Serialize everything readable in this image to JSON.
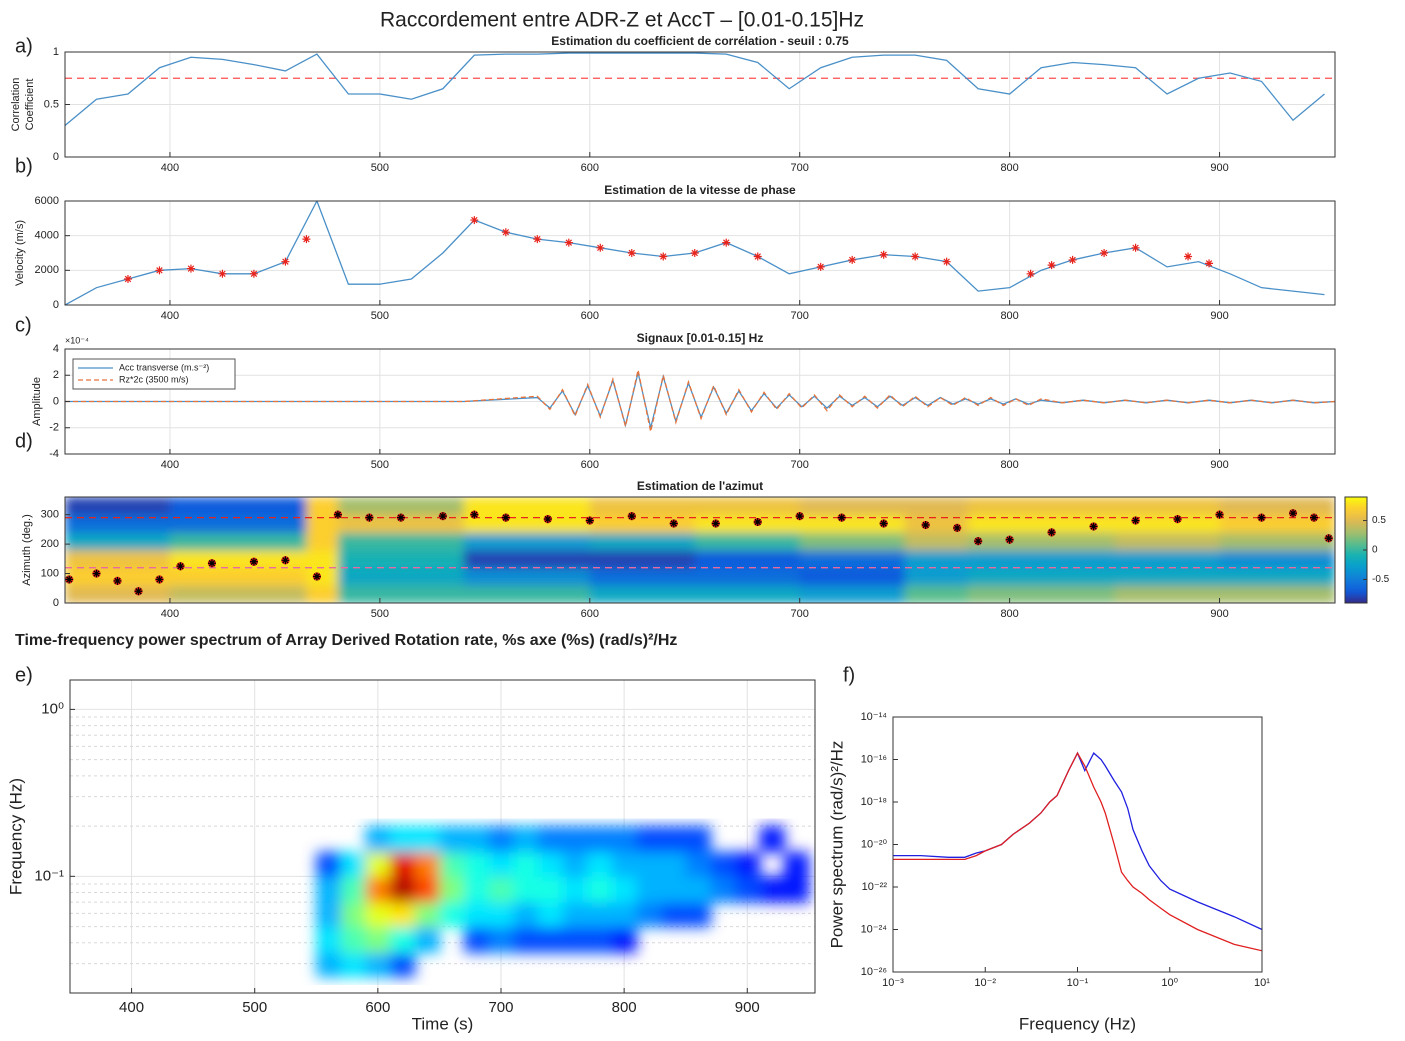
{
  "title": "Raccordement entre ADR-Z et AccT – [0.01-0.15]Hz",
  "chart_data": [
    {
      "type": "line",
      "panel": "a)",
      "title": "Estimation du coefficient de corrélation - seuil : 0.75",
      "ylabel": [
        "Correlation",
        "Coefficient"
      ],
      "x": [
        350,
        365,
        380,
        395,
        410,
        425,
        440,
        455,
        470,
        485,
        500,
        515,
        530,
        545,
        560,
        575,
        590,
        605,
        620,
        635,
        650,
        665,
        680,
        695,
        710,
        725,
        740,
        755,
        770,
        785,
        800,
        815,
        830,
        845,
        860,
        875,
        890,
        905,
        920,
        935,
        950
      ],
      "series": [
        {
          "color": "#4a90c8",
          "values": [
            0.3,
            0.55,
            0.6,
            0.85,
            0.95,
            0.93,
            0.88,
            0.82,
            0.98,
            0.6,
            0.6,
            0.55,
            0.65,
            0.97,
            0.98,
            0.98,
            0.99,
            0.99,
            0.99,
            0.99,
            0.99,
            0.98,
            0.9,
            0.65,
            0.85,
            0.95,
            0.97,
            0.97,
            0.92,
            0.65,
            0.6,
            0.85,
            0.9,
            0.88,
            0.85,
            0.6,
            0.75,
            0.8,
            0.72,
            0.35,
            0.6
          ]
        }
      ],
      "hlines": [
        {
          "value": 0.75,
          "color": "#ff4d4d"
        }
      ],
      "xlim": [
        350,
        955
      ],
      "xticks": [
        400,
        500,
        600,
        700,
        800,
        900
      ],
      "ylim": [
        0,
        1
      ],
      "yticks": [
        0,
        0.5,
        1
      ],
      "grid": true
    },
    {
      "type": "line",
      "panel": "b)",
      "title": "Estimation de la vitesse de phase",
      "ylabel": "Velocity (m/s)",
      "x": [
        350,
        365,
        380,
        395,
        410,
        425,
        440,
        455,
        470,
        485,
        500,
        515,
        530,
        545,
        560,
        575,
        590,
        605,
        620,
        635,
        650,
        665,
        680,
        695,
        710,
        725,
        740,
        755,
        770,
        785,
        800,
        815,
        830,
        845,
        860,
        875,
        890,
        905,
        920,
        935,
        950
      ],
      "series": [
        {
          "color": "#4a90c8",
          "values": [
            0,
            1000,
            1500,
            2000,
            2100,
            1800,
            1800,
            2500,
            6000,
            1200,
            1200,
            1500,
            3000,
            4900,
            4200,
            3800,
            3600,
            3300,
            3000,
            2800,
            3000,
            3600,
            2800,
            1800,
            2200,
            2600,
            2900,
            2800,
            2500,
            800,
            1000,
            2000,
            2600,
            3000,
            3300,
            2200,
            2500,
            1800,
            1000,
            800,
            600
          ]
        },
        {
          "color": "#e8231b",
          "mode": "markers",
          "x": [
            380,
            395,
            410,
            425,
            440,
            455,
            465,
            545,
            560,
            575,
            590,
            605,
            620,
            635,
            650,
            665,
            680,
            710,
            725,
            740,
            755,
            770,
            810,
            820,
            830,
            845,
            860,
            885,
            895
          ],
          "values": [
            1500,
            2000,
            2100,
            1800,
            1800,
            2500,
            3800,
            4900,
            4200,
            3800,
            3600,
            3300,
            3000,
            2800,
            3000,
            3600,
            2800,
            2200,
            2600,
            2900,
            2800,
            2500,
            1800,
            2300,
            2600,
            3000,
            3300,
            2800,
            2400
          ]
        }
      ],
      "xlim": [
        350,
        955
      ],
      "xticks": [
        400,
        500,
        600,
        700,
        800,
        900
      ],
      "ylim": [
        0,
        6000
      ],
      "yticks": [
        0,
        2000,
        4000,
        6000
      ],
      "grid": true
    },
    {
      "type": "line",
      "panel": "c)",
      "title": "Signaux [0.01-0.15] Hz",
      "ylabel": "Amplitude",
      "exponent_label": "×10⁻⁴",
      "x": [
        350,
        540,
        575,
        581,
        587,
        593,
        599,
        605,
        611,
        617,
        623,
        629,
        635,
        641,
        647,
        653,
        659,
        665,
        671,
        677,
        683,
        689,
        695,
        701,
        707,
        713,
        719,
        725,
        731,
        737,
        743,
        749,
        755,
        761,
        767,
        773,
        779,
        785,
        791,
        797,
        803,
        809,
        815,
        825,
        835,
        845,
        855,
        865,
        875,
        885,
        895,
        905,
        915,
        925,
        935,
        945,
        955
      ],
      "series": [
        {
          "name": "Acc transverse (m.s⁻²)",
          "color": "#4a90c8",
          "values": [
            0,
            0,
            3e-05,
            -5e-05,
            8e-05,
            -0.0001,
            0.00012,
            -0.00011,
            0.00016,
            -0.00018,
            0.00022,
            -0.0002,
            0.00019,
            -0.00015,
            0.00014,
            -0.00012,
            0.00011,
            -9e-05,
            8e-05,
            -7e-05,
            6e-05,
            -5e-05,
            5e-05,
            -4e-05,
            4e-05,
            -5e-05,
            4e-05,
            -3e-05,
            3e-05,
            -4e-05,
            4e-05,
            -3e-05,
            3e-05,
            -3e-05,
            3e-05,
            -2e-05,
            2e-05,
            -2e-05,
            2e-05,
            -2e-05,
            2e-05,
            -2e-05,
            1e-05,
            -1e-05,
            1e-05,
            -1e-05,
            1e-05,
            -1e-05,
            1e-05,
            -1e-05,
            1e-05,
            -1e-05,
            1e-05,
            -1e-05,
            1e-05,
            -1e-05,
            0
          ]
        },
        {
          "name": "Rz*2c (3500 m/s)",
          "color": "#e8743b",
          "dash": true,
          "values": [
            0,
            0,
            4e-05,
            -6e-05,
            9e-05,
            -0.00011,
            0.00013,
            -0.00012,
            0.00017,
            -0.00019,
            0.00024,
            -0.00023,
            0.0002,
            -0.00016,
            0.00015,
            -0.00013,
            0.00012,
            -0.0001,
            9e-05,
            -8e-05,
            7e-05,
            -6e-05,
            6e-05,
            -5e-05,
            5e-05,
            -7e-05,
            5e-05,
            -4e-05,
            4e-05,
            -5e-05,
            5e-05,
            -4e-05,
            4e-05,
            -4e-05,
            3e-05,
            -3e-05,
            3e-05,
            -3e-05,
            3e-05,
            -3e-05,
            2e-05,
            -3e-05,
            2e-05,
            -1e-05,
            1e-05,
            -1e-05,
            1e-05,
            -1e-05,
            1e-05,
            -1e-05,
            1e-05,
            -1e-05,
            1e-05,
            -1e-05,
            1e-05,
            -1e-05,
            0
          ]
        }
      ],
      "legend": "upper left",
      "xlim": [
        350,
        955
      ],
      "xticks": [
        400,
        500,
        600,
        700,
        800,
        900
      ],
      "ylim": [
        -0.0004,
        0.0004
      ],
      "yticks": [
        {
          "value": -0.0004,
          "label": "-4"
        },
        {
          "value": -0.0002,
          "label": "-2"
        },
        0,
        {
          "value": 0.0002,
          "label": "2"
        },
        {
          "value": 0.0004,
          "label": "4"
        }
      ],
      "grid": true
    },
    {
      "type": "heatmap",
      "panel": "d)",
      "title": "Estimation de l'azimut",
      "ylabel": "Azimuth (deg.)",
      "colormap": "parula",
      "clim": [
        -0.9,
        0.9
      ],
      "colorbar_ticks": [
        -0.5,
        0,
        0.5
      ],
      "x_edges": [
        350,
        400,
        465,
        480,
        540,
        600,
        650,
        700,
        750,
        780,
        850,
        900,
        955
      ],
      "y_edges": [
        0,
        60,
        120,
        180,
        240,
        300,
        360
      ],
      "values": [
        [
          0.5,
          0.4,
          0.7,
          0,
          0,
          -0.2,
          -0.2,
          -0.3,
          0.1,
          0.2,
          0.3,
          0.3
        ],
        [
          0.7,
          0.7,
          0.8,
          -0.2,
          -0.4,
          -0.6,
          -0.6,
          -0.7,
          -0.3,
          -0.2,
          -0.2,
          -0.2
        ],
        [
          0.6,
          0.8,
          0.8,
          -0.1,
          -0.8,
          -0.8,
          -0.7,
          -0.6,
          -0.3,
          -0.3,
          -0.3,
          -0.4
        ],
        [
          -0.2,
          0,
          0.7,
          0,
          -0.3,
          -0.2,
          0,
          0.2,
          0.4,
          0.3,
          0.4,
          0.3
        ],
        [
          -0.6,
          -0.6,
          0.7,
          0.6,
          0.8,
          0.7,
          0.8,
          0.8,
          0.6,
          0.8,
          0.8,
          0.7
        ],
        [
          -0.8,
          -0.7,
          0.7,
          0.3,
          0.8,
          0.6,
          0.6,
          0.5,
          0.5,
          0.6,
          0.6,
          0.5
        ]
      ],
      "series": [
        {
          "mode": "markers",
          "color": "#000000",
          "edge_color": "#e8231b",
          "x": [
            352,
            365,
            375,
            385,
            395,
            405,
            420,
            440,
            455,
            470,
            480,
            495,
            510,
            530,
            545,
            560,
            580,
            600,
            620,
            640,
            660,
            680,
            700,
            720,
            740,
            760,
            775,
            785,
            800,
            820,
            840,
            860,
            880,
            900,
            920,
            935,
            945,
            952
          ],
          "values": [
            80,
            100,
            75,
            40,
            80,
            125,
            135,
            140,
            145,
            90,
            300,
            290,
            290,
            295,
            300,
            290,
            285,
            280,
            295,
            270,
            270,
            275,
            295,
            290,
            270,
            265,
            255,
            210,
            215,
            240,
            260,
            280,
            285,
            300,
            290,
            305,
            290,
            220
          ]
        }
      ],
      "hlines": [
        {
          "value": 290,
          "color": "#e8231b"
        },
        {
          "value": 120,
          "color": "#e86aa0"
        }
      ],
      "xlim": [
        350,
        955
      ],
      "xticks": [
        400,
        500,
        600,
        700,
        800,
        900
      ],
      "ylim": [
        0,
        360
      ],
      "yticks": [
        0,
        100,
        200,
        300
      ],
      "grid": false
    },
    {
      "type": "heatmap",
      "panel": "e)",
      "title": "Time-frequency power spectrum of Array Derived Rotation rate, %s axe (%s) (rad/s)²/Hz",
      "xlabel": "Time (s)",
      "ylabel": "Frequency (Hz)",
      "yscale": "log",
      "colormap": "jet",
      "clim": [
        0,
        1
      ],
      "x_edges": [
        550,
        570,
        590,
        610,
        630,
        650,
        670,
        690,
        710,
        730,
        750,
        770,
        790,
        810,
        830,
        850,
        870,
        890,
        910,
        930,
        950
      ],
      "y_edges": [
        0.025,
        0.035,
        0.05,
        0.07,
        0.1,
        0.14,
        0.2
      ],
      "values": [
        [
          0.3,
          0.35,
          0.3,
          0.2,
          null,
          null,
          null,
          null,
          null,
          null,
          null,
          null,
          null,
          null,
          null,
          null,
          null,
          null,
          null,
          null
        ],
        [
          0.35,
          0.45,
          0.5,
          0.4,
          0.3,
          null,
          0.2,
          0.25,
          0.2,
          0.2,
          0.2,
          0.2,
          0.15,
          null,
          null,
          null,
          null,
          null,
          null,
          null
        ],
        [
          0.3,
          0.5,
          0.6,
          0.65,
          0.5,
          0.4,
          0.35,
          0.35,
          0.3,
          0.35,
          0.3,
          0.3,
          0.3,
          0.25,
          0.2,
          0.2,
          null,
          null,
          null,
          null
        ],
        [
          0.3,
          0.45,
          0.75,
          0.95,
          0.8,
          0.5,
          0.4,
          0.45,
          0.4,
          0.4,
          0.35,
          0.4,
          0.35,
          0.3,
          0.3,
          0.3,
          0.25,
          0.2,
          0.15,
          0.15
        ],
        [
          0.2,
          0.35,
          0.6,
          0.9,
          0.75,
          0.45,
          0.4,
          0.35,
          0.4,
          0.35,
          0.3,
          0.35,
          0.3,
          0.3,
          0.3,
          0.25,
          0.2,
          0.15,
          null,
          0.15
        ],
        [
          null,
          null,
          0.3,
          0.35,
          0.35,
          0.3,
          0.3,
          0.25,
          0.3,
          0.25,
          0.25,
          0.25,
          0.25,
          0.2,
          0.2,
          0.2,
          null,
          null,
          0.15,
          null
        ]
      ],
      "xlim": [
        350,
        955
      ],
      "xticks": [
        400,
        500,
        600,
        700,
        800,
        900
      ],
      "ylim": [
        0.02,
        1.5
      ],
      "yticks": [
        {
          "value": 0.1,
          "label": "10⁻¹"
        },
        {
          "value": 1,
          "label": "10⁰"
        }
      ],
      "yminor": [
        0.02,
        0.03,
        0.04,
        0.05,
        0.06,
        0.07,
        0.08,
        0.09,
        0.2,
        0.3,
        0.4,
        0.5,
        0.6,
        0.7,
        0.8,
        0.9
      ],
      "grid": true
    },
    {
      "type": "line",
      "panel": "f)",
      "xlabel": "Frequency (Hz)",
      "ylabel": "Power spectrum (rad/s)²/Hz",
      "xscale": "log",
      "yscale": "log",
      "x": [
        0.001,
        0.002,
        0.004,
        0.006,
        0.008,
        0.01,
        0.015,
        0.02,
        0.03,
        0.04,
        0.05,
        0.06,
        0.08,
        0.1,
        0.12,
        0.15,
        0.18,
        0.2,
        0.25,
        0.3,
        0.35,
        0.4,
        0.5,
        0.6,
        0.8,
        1,
        2,
        5,
        10
      ],
      "series": [
        {
          "color": "#2020e0",
          "values": [
            3e-21,
            3e-21,
            2.5e-21,
            2.5e-21,
            4e-21,
            5e-21,
            1e-20,
            3e-20,
            1e-19,
            3e-19,
            1e-18,
            2e-18,
            3e-17,
            2e-16,
            3e-17,
            2e-16,
            1e-16,
            5e-17,
            1e-17,
            3e-18,
            5e-19,
            5e-20,
            5e-21,
            1e-21,
            2e-22,
            8e-23,
            2e-23,
            4e-24,
            1e-24
          ]
        },
        {
          "color": "#e02020",
          "values": [
            2e-21,
            2e-21,
            2e-21,
            2e-21,
            3e-21,
            5e-21,
            1e-20,
            3e-20,
            1e-19,
            3e-19,
            1e-18,
            2e-18,
            3e-17,
            2e-16,
            5e-17,
            5e-18,
            1e-18,
            3e-19,
            1e-20,
            5e-22,
            2e-22,
            1e-22,
            5e-23,
            2.5e-23,
            1e-23,
            5e-24,
            1e-24,
            2e-25,
            1e-25
          ]
        }
      ],
      "xlim": [
        0.001,
        10
      ],
      "xticks": [
        {
          "value": 0.001,
          "label": "10⁻³"
        },
        {
          "value": 0.01,
          "label": "10⁻²"
        },
        {
          "value": 0.1,
          "label": "10⁻¹"
        },
        {
          "value": 1,
          "label": "10⁰"
        },
        {
          "value": 10,
          "label": "10¹"
        }
      ],
      "ylim": [
        1e-26,
        1e-14
      ],
      "yticks": [
        {
          "value": 1e-26,
          "label": "10⁻²⁶"
        },
        {
          "value": 1e-24,
          "label": "10⁻²⁴"
        },
        {
          "value": 1e-22,
          "label": "10⁻²²"
        },
        {
          "value": 1e-20,
          "label": "10⁻²⁰"
        },
        {
          "value": 1e-18,
          "label": "10⁻¹⁸"
        },
        {
          "value": 1e-16,
          "label": "10⁻¹⁶"
        },
        {
          "value": 1e-14,
          "label": "10⁻¹⁴"
        }
      ],
      "grid": false
    }
  ]
}
